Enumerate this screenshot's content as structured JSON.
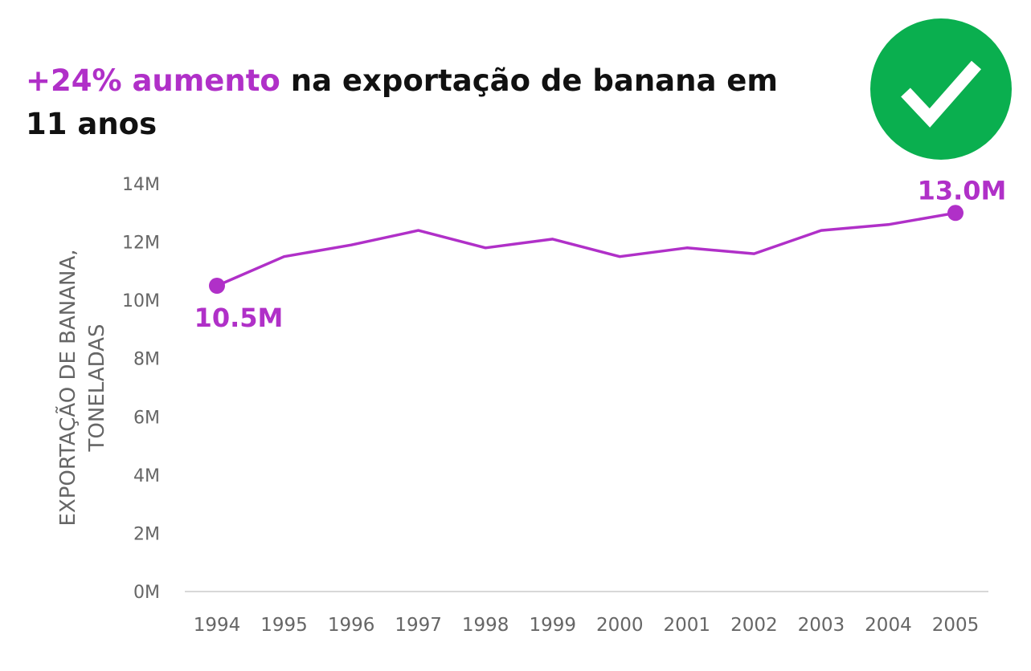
{
  "header": {
    "title_highlight": "+24% aumento",
    "title_rest": " na exportação de banana em 11 anos",
    "badge_icon": "check-circle-icon"
  },
  "colors": {
    "accent": "#b030c8",
    "badge": "#0aaf4f",
    "text": "#111111",
    "axis_text": "#666666"
  },
  "chart_data": {
    "type": "line",
    "title": "+24% aumento na exportação de banana em 11 anos",
    "ylabel": "EXPORTAÇÃO DE BANANA, TONELADAS",
    "xlabel": "",
    "x": [
      "1994",
      "1995",
      "1996",
      "1997",
      "1998",
      "1999",
      "2000",
      "2001",
      "2002",
      "2003",
      "2004",
      "2005"
    ],
    "values": [
      10.5,
      11.5,
      11.9,
      12.4,
      11.8,
      12.1,
      11.5,
      11.8,
      11.6,
      12.4,
      12.6,
      13.0
    ],
    "ylim": [
      0,
      14
    ],
    "yticks": [
      0,
      2,
      4,
      6,
      8,
      10,
      12,
      14
    ],
    "ytick_labels": [
      "0M",
      "2M",
      "4M",
      "6M",
      "8M",
      "10M",
      "12M",
      "14M"
    ],
    "grid": false,
    "annotations": [
      {
        "label": "10.5M",
        "x": "1994",
        "y": 10.5
      },
      {
        "label": "13.0M",
        "x": "2005",
        "y": 13.0
      }
    ]
  }
}
